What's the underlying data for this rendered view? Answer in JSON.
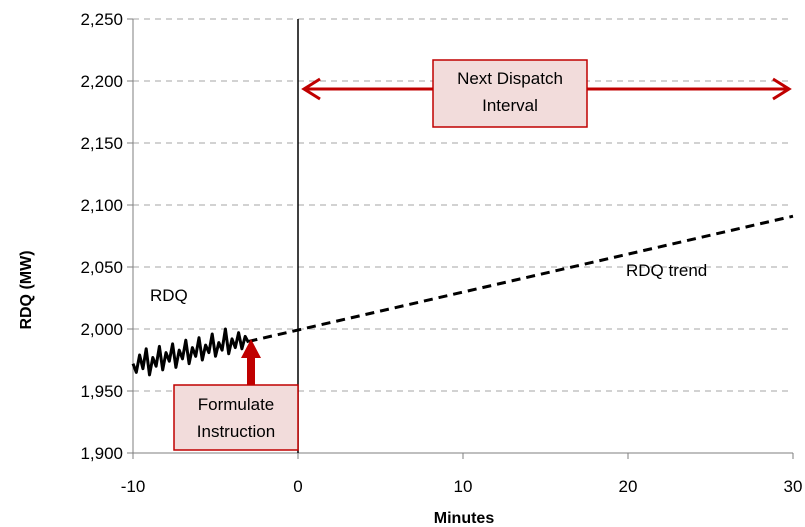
{
  "chart_data": {
    "type": "line",
    "title": "",
    "xlabel": "Minutes",
    "ylabel": "RDQ (MW)",
    "xlim": [
      -10,
      30
    ],
    "ylim": [
      1900,
      2250
    ],
    "x_ticks": [
      -10,
      0,
      10,
      20,
      30
    ],
    "x_tick_labels": [
      "-10",
      "0",
      "10",
      "20",
      "30"
    ],
    "y_ticks": [
      1900,
      1950,
      2000,
      2050,
      2100,
      2150,
      2200,
      2250
    ],
    "y_tick_labels": [
      "1,900",
      "1,950",
      "2,000",
      "2,050",
      "2,100",
      "2,150",
      "2,200",
      "2,250"
    ],
    "grid": "horizontal dashed",
    "series": [
      {
        "name": "RDQ",
        "style": "solid",
        "color": "#000000",
        "x": [
          -10.0,
          -9.8,
          -9.6,
          -9.4,
          -9.2,
          -9.0,
          -8.8,
          -8.6,
          -8.4,
          -8.2,
          -8.0,
          -7.8,
          -7.6,
          -7.4,
          -7.2,
          -7.0,
          -6.8,
          -6.6,
          -6.4,
          -6.2,
          -6.0,
          -5.8,
          -5.6,
          -5.4,
          -5.2,
          -5.0,
          -4.8,
          -4.6,
          -4.4,
          -4.2,
          -4.0,
          -3.8,
          -3.6,
          -3.4,
          -3.2,
          -3.0
        ],
        "y": [
          1972,
          1965,
          1979,
          1968,
          1984,
          1963,
          1977,
          1970,
          1986,
          1967,
          1981,
          1974,
          1988,
          1969,
          1983,
          1976,
          1991,
          1972,
          1985,
          1978,
          1993,
          1975,
          1987,
          1981,
          1996,
          1978,
          1989,
          1983,
          2000,
          1980,
          1992,
          1985,
          1997,
          1984,
          1994,
          1989
        ]
      },
      {
        "name": "RDQ trend",
        "style": "dashed",
        "color": "#000000",
        "x": [
          -3,
          30
        ],
        "y": [
          1990,
          2091
        ]
      }
    ],
    "vline_x": 0,
    "annotations": {
      "rdq_label": "RDQ",
      "trend_label": "RDQ trend",
      "dispatch_box_line1": "Next Dispatch",
      "dispatch_box_line2": "Interval",
      "instruction_box_line1": "Formulate",
      "instruction_box_line2": "Instruction"
    },
    "colors": {
      "arrow": "#c00000",
      "box_fill": "#f2dcdb",
      "box_border": "#c00000",
      "grid": "#a6a6a6"
    }
  }
}
